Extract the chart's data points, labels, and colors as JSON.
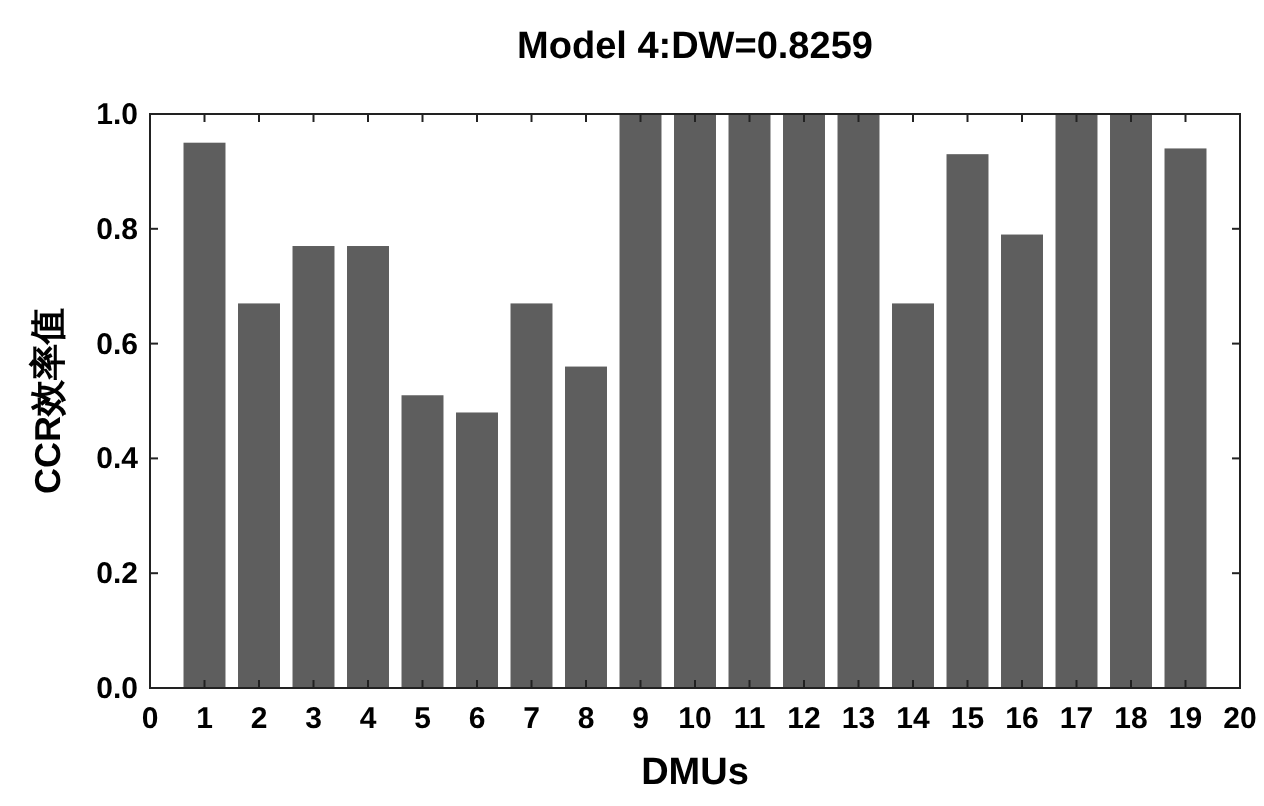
{
  "chart_data": {
    "type": "bar",
    "title": "Model 4:DW=0.8259",
    "xlabel": "DMUs",
    "ylabel": "CCR效率值",
    "x": [
      1,
      2,
      3,
      4,
      5,
      6,
      7,
      8,
      9,
      10,
      11,
      12,
      13,
      14,
      15,
      16,
      17,
      18,
      19
    ],
    "values": [
      0.95,
      0.67,
      0.77,
      0.77,
      0.51,
      0.48,
      0.67,
      0.56,
      1,
      1,
      1,
      1,
      1,
      0.67,
      0.93,
      0.79,
      1,
      1,
      0.94
    ],
    "color": "#5e5e5e",
    "xlim": [
      0,
      20
    ],
    "xticks": [
      0,
      1,
      2,
      3,
      4,
      5,
      6,
      7,
      8,
      9,
      10,
      11,
      12,
      13,
      14,
      15,
      16,
      17,
      18,
      19,
      20
    ],
    "ylim": [
      0,
      1
    ],
    "yticks": [
      {
        "value": 0,
        "label": "0.0"
      },
      {
        "value": 0.2,
        "label": "0.2"
      },
      {
        "value": 0.4,
        "label": "0.4"
      },
      {
        "value": 0.6,
        "label": "0.6"
      },
      {
        "value": 0.8,
        "label": "0.8"
      },
      {
        "value": 1,
        "label": "1.0"
      }
    ]
  }
}
